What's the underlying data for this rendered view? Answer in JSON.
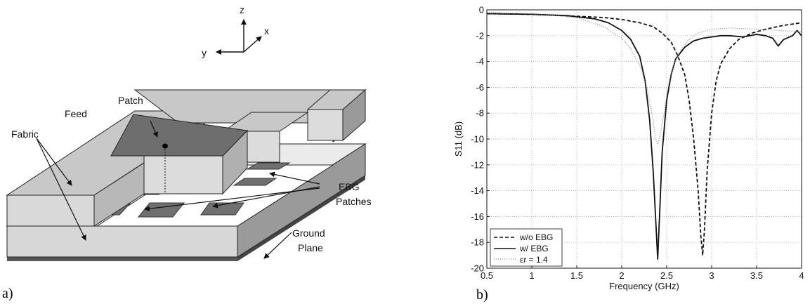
{
  "panel_a": {
    "letter": "a)",
    "axes": {
      "z": "z",
      "x": "x",
      "y": "y"
    },
    "labels": {
      "patch": "Patch",
      "feed": "Feed",
      "fabric": "Fabric",
      "ebg_line1": "EBG",
      "ebg_line2": "Patches",
      "ground_line1": "Ground",
      "ground_line2": "Plane"
    }
  },
  "panel_b": {
    "letter": "b)"
  },
  "chart_data": {
    "type": "line",
    "xlabel": "Frequency (GHz)",
    "ylabel": "S11 (dB)",
    "xlim": [
      0.5,
      4
    ],
    "ylim": [
      -20,
      0
    ],
    "xticks": [
      "0.5",
      "1",
      "1.5",
      "2",
      "2.5",
      "3",
      "3.5",
      "4"
    ],
    "yticks": [
      "0",
      "-2",
      "-4",
      "-6",
      "-8",
      "-10",
      "-12",
      "-14",
      "-16",
      "-18",
      "-20"
    ],
    "grid": "dotted",
    "legend_position": "bottom-left",
    "series": [
      {
        "name": "w/o EBG",
        "style": "dashed",
        "color": "#111111",
        "points": [
          [
            0.5,
            -0.3
          ],
          [
            1.0,
            -0.35
          ],
          [
            1.5,
            -0.5
          ],
          [
            1.8,
            -0.6
          ],
          [
            2.0,
            -0.75
          ],
          [
            2.2,
            -1.0
          ],
          [
            2.35,
            -1.3
          ],
          [
            2.45,
            -1.8
          ],
          [
            2.55,
            -2.5
          ],
          [
            2.62,
            -3.5
          ],
          [
            2.7,
            -5.0
          ],
          [
            2.75,
            -7.0
          ],
          [
            2.8,
            -10.0
          ],
          [
            2.85,
            -14.0
          ],
          [
            2.88,
            -17.5
          ],
          [
            2.9,
            -19.0
          ],
          [
            2.92,
            -17.0
          ],
          [
            2.95,
            -12.5
          ],
          [
            3.0,
            -8.0
          ],
          [
            3.05,
            -5.5
          ],
          [
            3.1,
            -4.2
          ],
          [
            3.2,
            -3.0
          ],
          [
            3.3,
            -2.3
          ],
          [
            3.45,
            -1.8
          ],
          [
            3.6,
            -1.5
          ],
          [
            3.8,
            -1.2
          ],
          [
            4.0,
            -1.0
          ]
        ]
      },
      {
        "name": "w/ EBG",
        "style": "solid",
        "color": "#111111",
        "points": [
          [
            0.5,
            -0.3
          ],
          [
            1.0,
            -0.35
          ],
          [
            1.4,
            -0.45
          ],
          [
            1.7,
            -0.7
          ],
          [
            1.85,
            -1.0
          ],
          [
            2.0,
            -1.6
          ],
          [
            2.1,
            -2.3
          ],
          [
            2.2,
            -3.6
          ],
          [
            2.26,
            -5.5
          ],
          [
            2.31,
            -8.5
          ],
          [
            2.35,
            -12.5
          ],
          [
            2.38,
            -16.5
          ],
          [
            2.4,
            -19.3
          ],
          [
            2.42,
            -16.0
          ],
          [
            2.45,
            -11.0
          ],
          [
            2.5,
            -7.0
          ],
          [
            2.55,
            -5.0
          ],
          [
            2.6,
            -3.8
          ],
          [
            2.7,
            -2.9
          ],
          [
            2.8,
            -2.4
          ],
          [
            2.9,
            -2.2
          ],
          [
            3.0,
            -2.1
          ],
          [
            3.1,
            -2.0
          ],
          [
            3.2,
            -2.0
          ],
          [
            3.35,
            -2.1
          ],
          [
            3.5,
            -1.9
          ],
          [
            3.6,
            -2.0
          ],
          [
            3.68,
            -2.2
          ],
          [
            3.74,
            -2.8
          ],
          [
            3.8,
            -2.3
          ],
          [
            3.9,
            -2.0
          ],
          [
            3.95,
            -1.6
          ],
          [
            4.0,
            -2.0
          ]
        ]
      },
      {
        "name": "εr = 1.4",
        "style": "dotted",
        "color": "#888888",
        "points": [
          [
            0.5,
            -0.2
          ],
          [
            1.0,
            -0.3
          ],
          [
            1.5,
            -0.6
          ],
          [
            1.8,
            -1.3
          ],
          [
            2.0,
            -2.2
          ],
          [
            2.1,
            -3.0
          ],
          [
            2.2,
            -4.3
          ],
          [
            2.28,
            -6.0
          ],
          [
            2.34,
            -8.2
          ],
          [
            2.38,
            -10.0
          ],
          [
            2.4,
            -10.4
          ],
          [
            2.42,
            -10.0
          ],
          [
            2.47,
            -8.0
          ],
          [
            2.52,
            -5.8
          ],
          [
            2.58,
            -4.2
          ],
          [
            2.65,
            -3.2
          ],
          [
            2.75,
            -2.3
          ],
          [
            2.85,
            -1.8
          ],
          [
            3.0,
            -1.5
          ],
          [
            3.2,
            -1.4
          ],
          [
            3.5,
            -1.5
          ],
          [
            3.75,
            -1.6
          ],
          [
            4.0,
            -1.7
          ]
        ]
      }
    ]
  }
}
